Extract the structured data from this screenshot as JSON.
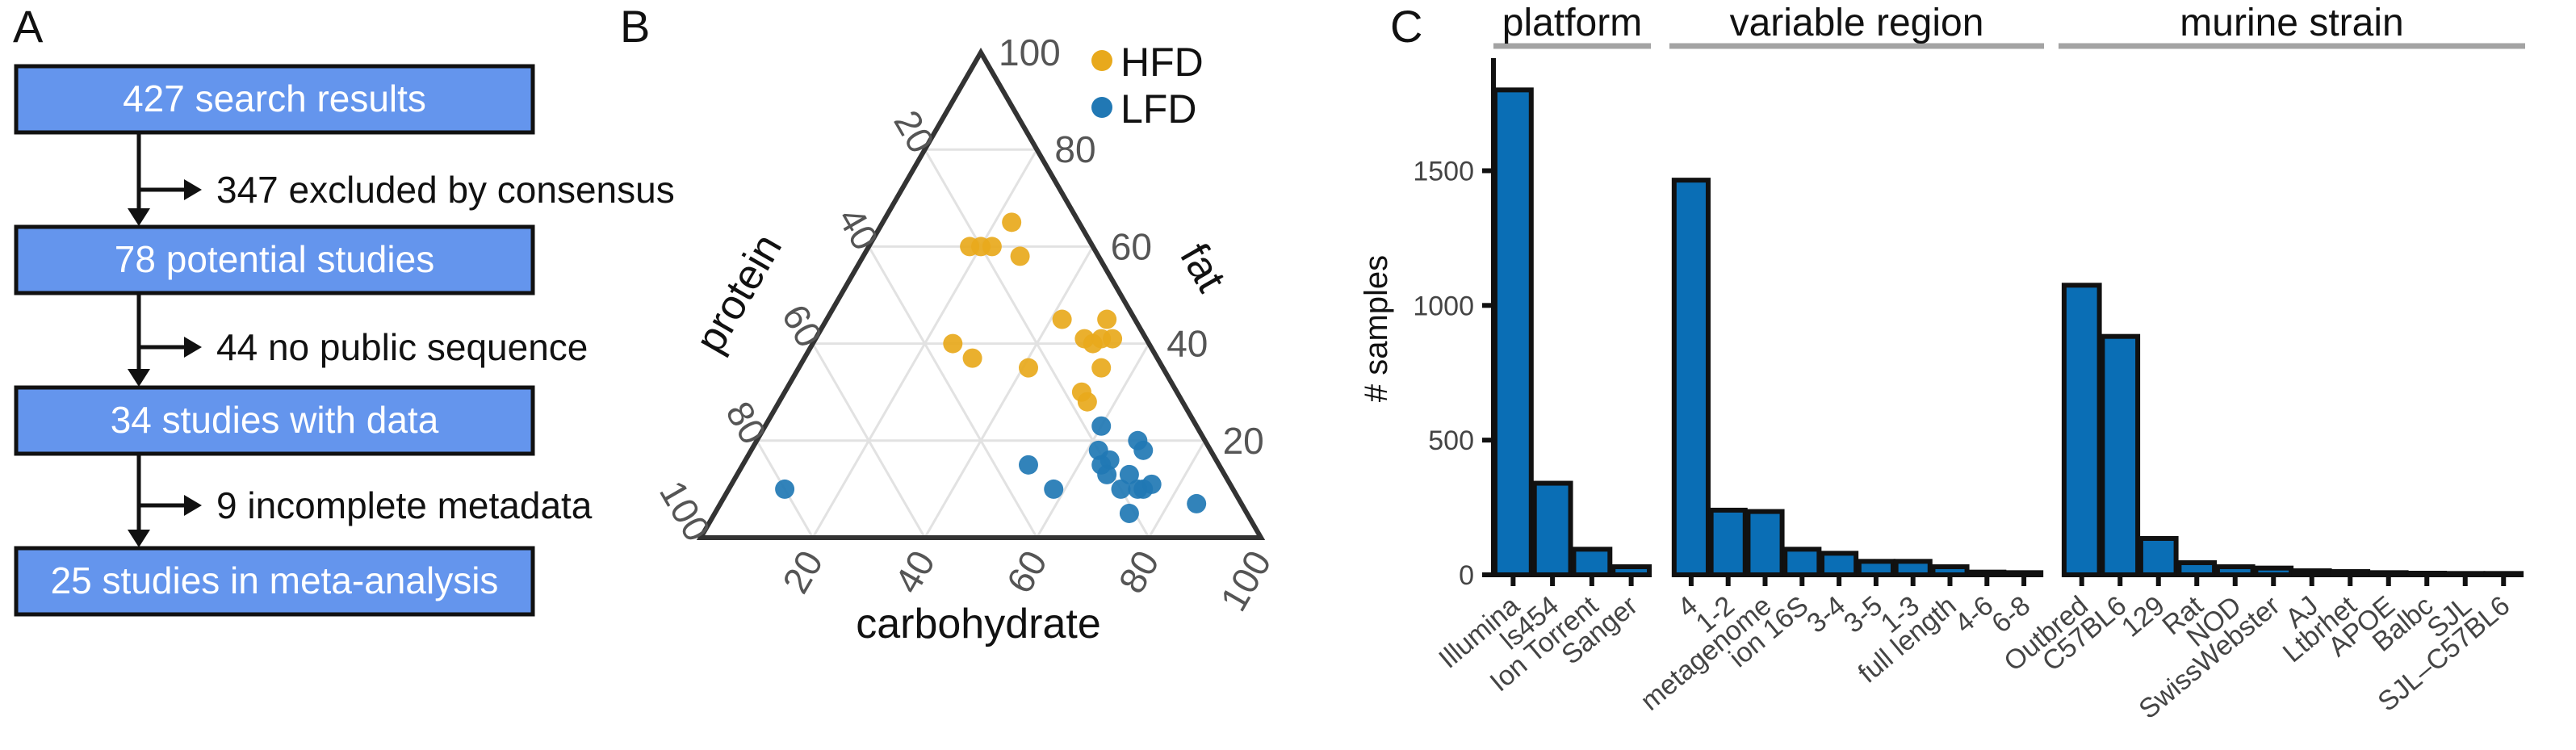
{
  "panels": {
    "a": "A",
    "b": "B",
    "c": "C"
  },
  "flowchart": {
    "boxes": [
      "427 search results",
      "78 potential studies",
      "34 studies with data",
      "25 studies in meta-analysis"
    ],
    "exclusions": [
      "347 excluded by consensus",
      "44 no public sequence",
      "9 incomplete metadata"
    ],
    "box_color": "#6495ED"
  },
  "ternary": {
    "axis_labels": {
      "left": "protein",
      "right": "fat",
      "bottom": "carbohydrate"
    },
    "ticks": [
      "20",
      "40",
      "60",
      "80",
      "100"
    ],
    "legend": [
      {
        "name": "HFD",
        "color": "#E8A91C"
      },
      {
        "name": "LFD",
        "color": "#2178B4"
      }
    ]
  },
  "chart_data": [
    {
      "type": "scatter",
      "subtype": "ternary",
      "axes": [
        "carbohydrate",
        "fat",
        "protein"
      ],
      "range": [
        0,
        100
      ],
      "grid": true,
      "legend_position": "top-right",
      "series": [
        {
          "name": "HFD",
          "color": "#E8A91C",
          "points": [
            {
              "carbohydrate": 20,
              "fat": 60,
              "protein": 20
            },
            {
              "carbohydrate": 18,
              "fat": 60,
              "protein": 22
            },
            {
              "carbohydrate": 22,
              "fat": 60,
              "protein": 18
            },
            {
              "carbohydrate": 23,
              "fat": 65,
              "protein": 12
            },
            {
              "carbohydrate": 28,
              "fat": 58,
              "protein": 14
            },
            {
              "carbohydrate": 25,
              "fat": 40,
              "protein": 35
            },
            {
              "carbohydrate": 30,
              "fat": 37,
              "protein": 33
            },
            {
              "carbohydrate": 41,
              "fat": 35,
              "protein": 24
            },
            {
              "carbohydrate": 42,
              "fat": 45,
              "protein": 13
            },
            {
              "carbohydrate": 50,
              "fat": 45,
              "protein": 5
            },
            {
              "carbohydrate": 48,
              "fat": 41,
              "protein": 11
            },
            {
              "carbohydrate": 50,
              "fat": 40,
              "protein": 10
            },
            {
              "carbohydrate": 51,
              "fat": 41,
              "protein": 8
            },
            {
              "carbohydrate": 53,
              "fat": 41,
              "protein": 6
            },
            {
              "carbohydrate": 54,
              "fat": 35,
              "protein": 11
            },
            {
              "carbohydrate": 53,
              "fat": 30,
              "protein": 17
            },
            {
              "carbohydrate": 55,
              "fat": 28,
              "protein": 17
            }
          ]
        },
        {
          "name": "LFD",
          "color": "#2178B4",
          "points": [
            {
              "carbohydrate": 10,
              "fat": 10,
              "protein": 80
            },
            {
              "carbohydrate": 51,
              "fat": 15,
              "protein": 34
            },
            {
              "carbohydrate": 58,
              "fat": 10,
              "protein": 32
            },
            {
              "carbohydrate": 60,
              "fat": 23,
              "protein": 17
            },
            {
              "carbohydrate": 62,
              "fat": 18,
              "protein": 20
            },
            {
              "carbohydrate": 65,
              "fat": 16,
              "protein": 19
            },
            {
              "carbohydrate": 64,
              "fat": 15,
              "protein": 21
            },
            {
              "carbohydrate": 66,
              "fat": 13,
              "protein": 21
            },
            {
              "carbohydrate": 70,
              "fat": 13,
              "protein": 17
            },
            {
              "carbohydrate": 70,
              "fat": 10,
              "protein": 20
            },
            {
              "carbohydrate": 73,
              "fat": 10,
              "protein": 17
            },
            {
              "carbohydrate": 74,
              "fat": 10,
              "protein": 16
            },
            {
              "carbohydrate": 75,
              "fat": 11,
              "protein": 14
            },
            {
              "carbohydrate": 70,
              "fat": 18,
              "protein": 12
            },
            {
              "carbohydrate": 68,
              "fat": 20,
              "protein": 12
            },
            {
              "carbohydrate": 74,
              "fat": 5,
              "protein": 21
            },
            {
              "carbohydrate": 85,
              "fat": 7,
              "protein": 8
            }
          ]
        }
      ]
    },
    {
      "type": "bar",
      "ylabel": "# samples",
      "ylim": [
        0,
        1900
      ],
      "yticks": [
        0,
        500,
        1000,
        1500
      ],
      "bar_color": "#0A6EB5",
      "facets": [
        {
          "title": "platform",
          "categories": [
            "Illumina",
            "ls454",
            "Ion Torrent",
            "Sanger"
          ],
          "values": [
            1800,
            340,
            95,
            30
          ]
        },
        {
          "title": "variable region",
          "categories": [
            "4",
            "1-2",
            "metagenome",
            "ion 16S",
            "3-4",
            "3-5",
            "1-3",
            "full length",
            "4-6",
            "6-8"
          ],
          "values": [
            1465,
            240,
            235,
            95,
            80,
            50,
            50,
            30,
            10,
            8
          ]
        },
        {
          "title": "murine strain",
          "categories": [
            "Outbred",
            "C57BL6",
            "129",
            "Rat",
            "NOD",
            "SwissWebster",
            "AJ",
            "Ltbrhet",
            "APOE",
            "Balbc",
            "SJL",
            "SJL–C57BL6"
          ],
          "values": [
            1075,
            885,
            135,
            45,
            30,
            25,
            15,
            12,
            8,
            6,
            5,
            5
          ]
        }
      ]
    }
  ]
}
